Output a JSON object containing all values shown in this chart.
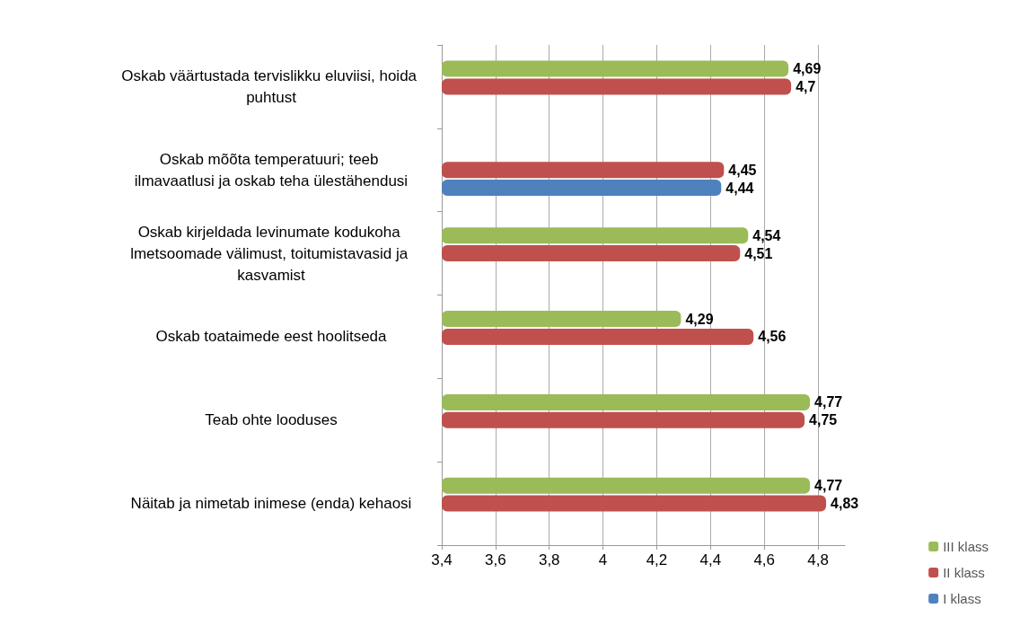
{
  "chart_data": {
    "type": "bar",
    "orientation": "horizontal",
    "categories": [
      "Oskab väärtustada tervislikku eluviisi, hoida puhtust",
      "Oskab mõõta temperatuuri; teeb ilmavaatlusi ja oskab teha ülestähendusi",
      "Oskab kirjeldada levinumate kodukoha lmetsoomade välimust, toitumistavasid ja kasvamist",
      "Oskab toataimede eest hoolitseda",
      "Teab ohte looduses",
      "Näitab ja nimetab inimese (enda) kehaosi"
    ],
    "series": [
      {
        "name": "III klass",
        "color": "#9bbb59",
        "values": [
          4.69,
          null,
          4.54,
          4.29,
          4.77,
          4.77
        ],
        "value_labels": [
          "4,69",
          null,
          "4,54",
          "4,29",
          "4,77",
          "4,77"
        ]
      },
      {
        "name": "II klass",
        "color": "#c0504d",
        "values": [
          4.7,
          4.45,
          4.51,
          4.56,
          4.75,
          4.83
        ],
        "value_labels": [
          "4,7",
          "4,45",
          "4,51",
          "4,56",
          "4,75",
          "4,83"
        ]
      },
      {
        "name": "I klass",
        "color": "#4f81bd",
        "values": [
          null,
          4.44,
          null,
          null,
          null,
          null
        ],
        "value_labels": [
          null,
          "4,44",
          null,
          null,
          null,
          null
        ]
      }
    ],
    "xlim": [
      3.4,
      4.9
    ],
    "xticks": [
      {
        "value": 3.4,
        "label": "3,4"
      },
      {
        "value": 3.6,
        "label": "3,6"
      },
      {
        "value": 3.8,
        "label": "3,8"
      },
      {
        "value": 4,
        "label": "4"
      },
      {
        "value": 4.2,
        "label": "4,2"
      },
      {
        "value": 4.4,
        "label": "4,4"
      },
      {
        "value": 4.6,
        "label": "4,6"
      },
      {
        "value": 4.8,
        "label": "4,8"
      }
    ],
    "grid": "x",
    "legend": "bottom right"
  }
}
